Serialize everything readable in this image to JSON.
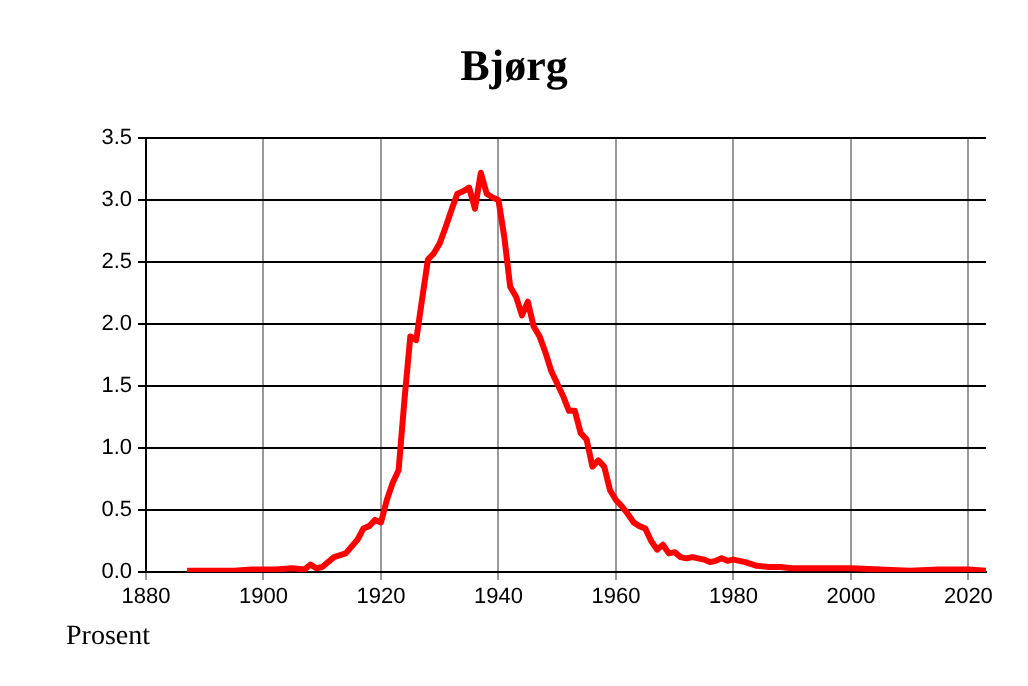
{
  "chart_data": {
    "type": "line",
    "title": "Bjørg",
    "ylabel": "Prosent",
    "x": [
      1887,
      1890,
      1895,
      1898,
      1900,
      1902,
      1905,
      1907,
      1908,
      1909,
      1910,
      1912,
      1914,
      1916,
      1917,
      1918,
      1919,
      1920,
      1921,
      1922,
      1923,
      1924,
      1925,
      1926,
      1927,
      1928,
      1929,
      1930,
      1931,
      1932,
      1933,
      1934,
      1935,
      1936,
      1937,
      1938,
      1939,
      1940,
      1941,
      1942,
      1943,
      1944,
      1945,
      1946,
      1947,
      1948,
      1949,
      1950,
      1951,
      1952,
      1953,
      1954,
      1955,
      1956,
      1957,
      1958,
      1959,
      1960,
      1961,
      1962,
      1963,
      1964,
      1965,
      1966,
      1967,
      1968,
      1969,
      1970,
      1971,
      1972,
      1973,
      1974,
      1975,
      1976,
      1977,
      1978,
      1979,
      1980,
      1982,
      1984,
      1986,
      1988,
      1990,
      1995,
      2000,
      2005,
      2010,
      2015,
      2020,
      2023
    ],
    "series": [
      {
        "color": "#ff0000",
        "values": [
          0.01,
          0.01,
          0.01,
          0.02,
          0.02,
          0.02,
          0.03,
          0.02,
          0.06,
          0.03,
          0.04,
          0.12,
          0.15,
          0.26,
          0.35,
          0.37,
          0.42,
          0.4,
          0.58,
          0.72,
          0.82,
          1.39,
          1.9,
          1.87,
          2.2,
          2.52,
          2.57,
          2.65,
          2.78,
          2.92,
          3.05,
          3.07,
          3.1,
          2.93,
          3.22,
          3.05,
          3.02,
          3.0,
          2.7,
          2.3,
          2.22,
          2.07,
          2.18,
          1.98,
          1.9,
          1.77,
          1.62,
          1.52,
          1.42,
          1.3,
          1.3,
          1.12,
          1.07,
          0.85,
          0.9,
          0.85,
          0.66,
          0.58,
          0.53,
          0.47,
          0.4,
          0.37,
          0.35,
          0.25,
          0.18,
          0.22,
          0.15,
          0.16,
          0.12,
          0.11,
          0.12,
          0.11,
          0.1,
          0.08,
          0.09,
          0.11,
          0.09,
          0.1,
          0.08,
          0.05,
          0.04,
          0.04,
          0.03,
          0.03,
          0.03,
          0.02,
          0.01,
          0.02,
          0.02,
          0.01
        ]
      }
    ],
    "xlim": [
      1880,
      2023
    ],
    "xticks": [
      1880,
      1900,
      1920,
      1940,
      1960,
      1980,
      2000,
      2020
    ],
    "ylim": [
      0,
      3.5
    ],
    "yticks": [
      {
        "value": 0,
        "label": "0.0"
      },
      0.5,
      {
        "value": 1,
        "label": "1.0"
      },
      1.5,
      {
        "value": 2,
        "label": "2.0"
      },
      2.5,
      {
        "value": 3,
        "label": "3.0"
      },
      3.5
    ],
    "grid": true,
    "legend": false,
    "marker": "none",
    "line_style": "solid"
  }
}
